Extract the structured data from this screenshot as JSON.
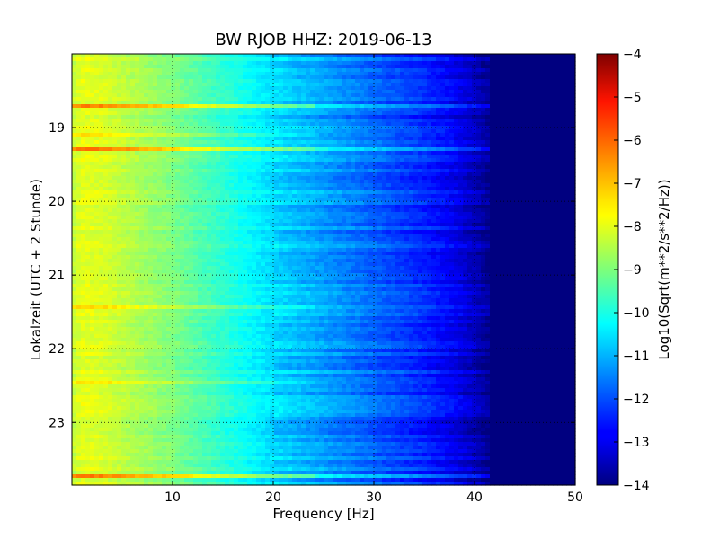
{
  "chart_data": {
    "type": "heatmap",
    "title": "BW RJOB HHZ: 2019-06-13",
    "xlabel": "Frequency [Hz]",
    "ylabel": "Lokalzeit (UTC + 2 Stunde)",
    "colorbar_label": "Log10(Sqrt(m**2/s**2/Hz))",
    "xlim": [
      0,
      50
    ],
    "ylim": [
      18.0,
      23.85
    ],
    "y_inverted": true,
    "xticks": [
      10,
      20,
      30,
      40,
      50
    ],
    "yticks": [
      19,
      20,
      21,
      22,
      23
    ],
    "colorbar_range": [
      -14,
      -4
    ],
    "colorbar_ticks": [
      -4,
      -5,
      -6,
      -7,
      -8,
      -9,
      -10,
      -11,
      -12,
      -13,
      -14
    ],
    "colormap": "jet",
    "grid": true,
    "spectrum_profile": {
      "frequency_hz": [
        0,
        1,
        3,
        6,
        10,
        15,
        20,
        25,
        30,
        35,
        38,
        40,
        41,
        42,
        50
      ],
      "log10_psd": [
        -8.4,
        -8.0,
        -8.1,
        -8.5,
        -9.0,
        -9.8,
        -10.6,
        -11.2,
        -11.8,
        -12.4,
        -12.9,
        -13.4,
        -13.7,
        -14.0,
        -14.0
      ]
    },
    "strong_bands_hours": [
      18.72,
      19.31,
      23.72
    ],
    "moderate_bands_hours": [
      19.12,
      21.45,
      22.45
    ]
  }
}
